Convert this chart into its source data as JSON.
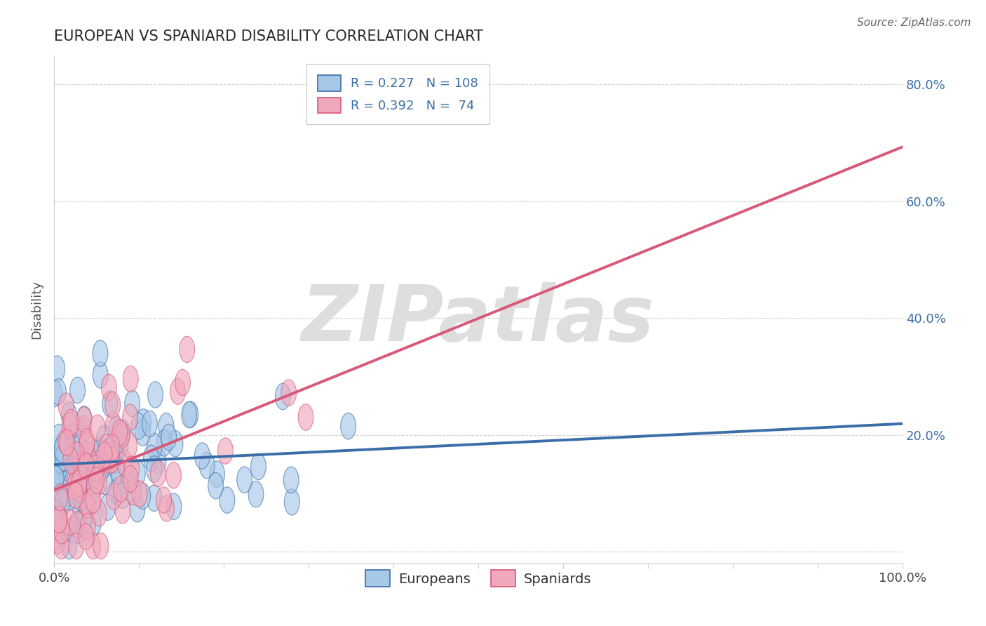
{
  "title": "EUROPEAN VS SPANIARD DISABILITY CORRELATION CHART",
  "source": "Source: ZipAtlas.com",
  "ylabel": "Disability",
  "xlabel": "",
  "xlim": [
    0.0,
    1.0
  ],
  "ylim": [
    -0.02,
    0.85
  ],
  "xticks": [
    0.0,
    0.1,
    0.2,
    0.3,
    0.4,
    0.5,
    0.6,
    0.7,
    0.8,
    0.9,
    1.0
  ],
  "xtick_labels": [
    "0.0%",
    "",
    "",
    "",
    "",
    "",
    "",
    "",
    "",
    "",
    "100.0%"
  ],
  "yticks": [
    0.0,
    0.2,
    0.4,
    0.6,
    0.8
  ],
  "ytick_labels": [
    "",
    "20.0%",
    "40.0%",
    "60.0%",
    "80.0%"
  ],
  "legend_eu": "R = 0.227   N = 108",
  "legend_sp": "R = 0.392   N =  74",
  "european_color": "#a8c8e8",
  "spaniard_color": "#f0a8bc",
  "european_line_color": "#3a6ea8",
  "spaniard_line_color": "#d85878",
  "watermark": "ZIPatlas",
  "R_european": 0.227,
  "N_european": 108,
  "R_spaniard": 0.392,
  "N_spaniard": 74,
  "european_seed": 42,
  "spaniard_seed": 123,
  "eu_intercept": 0.14,
  "eu_slope": 0.17,
  "sp_intercept": 0.13,
  "sp_slope": 0.22
}
